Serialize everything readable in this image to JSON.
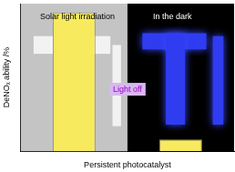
{
  "chart_data": {
    "type": "bar",
    "categories": [
      null,
      null
    ],
    "values": [
      94,
      8
    ],
    "color": "#f7ea5e",
    "ylim": [
      0,
      100
    ],
    "yticks": [],
    "xlabel": "Persistent photocatalyst",
    "ylabel": "DeNOₓ ability /%",
    "annotations": [
      "Solar light irradiation",
      "In the dark",
      "Light off"
    ],
    "tick_labels": false,
    "grid": false
  }
}
